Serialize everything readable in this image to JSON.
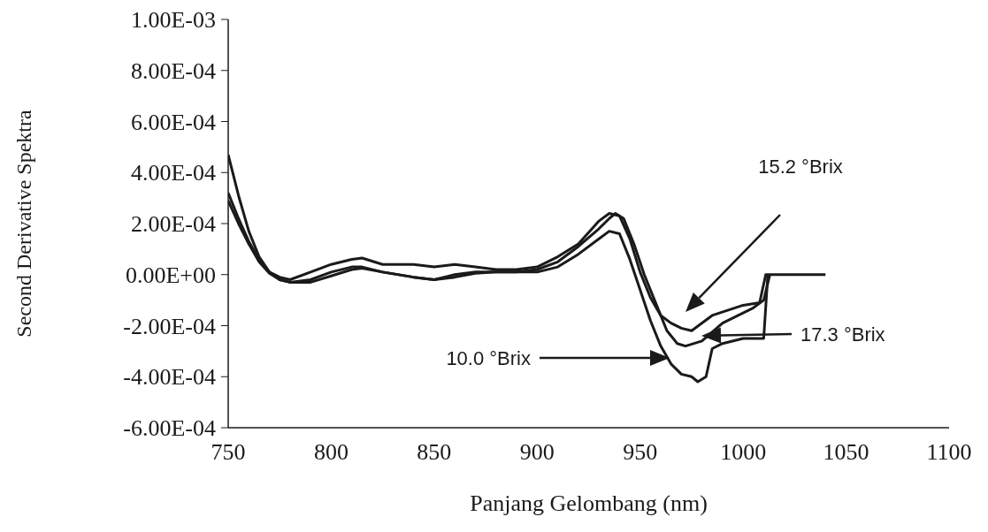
{
  "chart_data": {
    "type": "line",
    "xlabel": "Panjang Gelombang (nm)",
    "ylabel": "Second Derivative Spektra",
    "xlim": [
      750,
      1100
    ],
    "xticks": [
      750,
      800,
      850,
      900,
      950,
      1000,
      1050,
      1100
    ],
    "ylim": [
      -0.0006,
      0.001
    ],
    "yticks": [
      {
        "value": -0.0006,
        "label": "-6.00E-04"
      },
      {
        "value": -0.0004,
        "label": "-4.00E-04"
      },
      {
        "value": -0.0002,
        "label": "-2.00E-04"
      },
      {
        "value": 0,
        "label": "0.00E+00"
      },
      {
        "value": 0.0002,
        "label": "2.00E-04"
      },
      {
        "value": 0.0004,
        "label": "4.00E-04"
      },
      {
        "value": 0.0006,
        "label": "6.00E-04"
      },
      {
        "value": 0.0008,
        "label": "8.00E-04"
      },
      {
        "value": 0.001,
        "label": "1.00E-03"
      }
    ],
    "grid": false,
    "marker": "none",
    "line_style": "solid",
    "series": [
      {
        "color": "#1a1a1a",
        "x": [
          750,
          755,
          760,
          765,
          770,
          775,
          780,
          790,
          800,
          810,
          815,
          825,
          840,
          850,
          860,
          870,
          880,
          890,
          900,
          910,
          920,
          930,
          935,
          940,
          945,
          950,
          955,
          960,
          965,
          970,
          975,
          978,
          982,
          985,
          990,
          1000,
          1010,
          1012
        ],
        "values": [
          0.00029,
          0.0002,
          0.00012,
          5e-05,
          5e-06,
          -2e-05,
          -3e-05,
          -3e-05,
          -5e-06,
          2e-05,
          2.5e-05,
          1e-05,
          -1e-05,
          -2e-05,
          -1e-05,
          5e-06,
          1e-05,
          1e-05,
          1e-05,
          3e-05,
          8e-05,
          0.00014,
          0.00017,
          0.00016,
          6e-05,
          -6e-05,
          -0.00018,
          -0.00028,
          -0.00035,
          -0.00039,
          -0.0004,
          -0.00042,
          -0.0004,
          -0.00029,
          -0.00027,
          -0.00025,
          -0.00025,
          0
        ]
      },
      {
        "color": "#1a1a1a",
        "x": [
          750,
          755,
          760,
          765,
          770,
          775,
          780,
          790,
          800,
          810,
          815,
          825,
          840,
          850,
          860,
          870,
          880,
          890,
          900,
          910,
          920,
          930,
          935,
          938,
          942,
          947,
          952,
          958,
          963,
          968,
          972,
          980,
          990,
          1000,
          1005,
          1010,
          1013
        ],
        "values": [
          0.00047,
          0.00031,
          0.00017,
          7e-05,
          1e-05,
          -2e-05,
          -3e-05,
          -2e-05,
          1e-05,
          3e-05,
          3e-05,
          1e-05,
          -1e-05,
          -2e-05,
          0,
          1e-05,
          1e-05,
          1e-05,
          2e-05,
          5e-05,
          0.00011,
          0.00018,
          0.00022,
          0.00024,
          0.00022,
          0.00012,
          0,
          -0.00012,
          -0.00022,
          -0.00027,
          -0.00028,
          -0.00026,
          -0.00019,
          -0.00015,
          -0.00013,
          -0.0001,
          0
        ]
      },
      {
        "color": "#1a1a1a",
        "x": [
          750,
          755,
          760,
          765,
          770,
          775,
          780,
          790,
          800,
          810,
          815,
          825,
          840,
          850,
          860,
          870,
          880,
          890,
          900,
          910,
          920,
          930,
          935,
          940,
          945,
          950,
          955,
          960,
          965,
          970,
          975,
          985,
          1000,
          1008,
          1011,
          1020,
          1030,
          1040
        ],
        "values": [
          0.00032,
          0.00022,
          0.00013,
          6e-05,
          1e-05,
          -1e-05,
          -2e-05,
          1e-05,
          4e-05,
          6e-05,
          6.5e-05,
          4e-05,
          4e-05,
          3e-05,
          4e-05,
          3e-05,
          2e-05,
          2e-05,
          3e-05,
          7e-05,
          0.00012,
          0.00021,
          0.00024,
          0.00023,
          0.00014,
          1e-05,
          -9e-05,
          -0.00016,
          -0.00019,
          -0.00021,
          -0.00022,
          -0.00016,
          -0.00012,
          -0.00011,
          0,
          0,
          0,
          0
        ]
      }
    ],
    "annotations": [
      "10.0 °Brix",
      "15.2 °Brix",
      "17.3 °Brix"
    ]
  }
}
